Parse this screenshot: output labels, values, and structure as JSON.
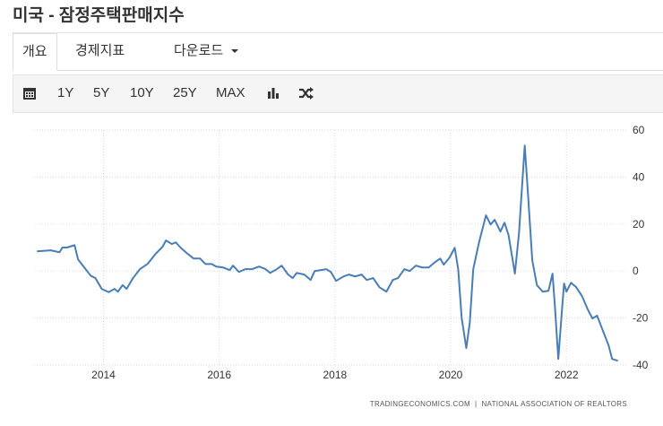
{
  "header": {
    "title": "미국 - 잠정주택판매지수"
  },
  "tabs": [
    "개요",
    "경제지표",
    "다운로드"
  ],
  "toolbar": {
    "ranges": [
      "1Y",
      "5Y",
      "10Y",
      "25Y",
      "MAX"
    ]
  },
  "chart_data": {
    "type": "line",
    "source": "TRADINGECONOMICS.COM  |  NATIONAL ASSOCIATION OF REALTORS",
    "xlim": [
      2012.8,
      2023.05
    ],
    "xticks": [
      2014,
      2016,
      2018,
      2020,
      2022
    ],
    "ylim": [
      -40,
      60
    ],
    "yticks": [
      -40,
      -20,
      0,
      20,
      40,
      60
    ],
    "grid": true,
    "x": [
      2012.85,
      2013.09,
      2013.24,
      2013.29,
      2013.37,
      2013.5,
      2013.56,
      2013.63,
      2013.78,
      2013.86,
      2013.97,
      2014.09,
      2014.19,
      2014.25,
      2014.33,
      2014.4,
      2014.51,
      2014.63,
      2014.76,
      2014.9,
      2015.02,
      2015.08,
      2015.18,
      2015.25,
      2015.33,
      2015.44,
      2015.56,
      2015.67,
      2015.76,
      2015.87,
      2015.95,
      2016.07,
      2016.18,
      2016.24,
      2016.34,
      2016.45,
      2016.57,
      2016.69,
      2016.8,
      2016.88,
      2016.97,
      2017.08,
      2017.19,
      2017.27,
      2017.34,
      2017.47,
      2017.58,
      2017.65,
      2017.76,
      2017.85,
      2017.93,
      2018.02,
      2018.15,
      2018.24,
      2018.35,
      2018.46,
      2018.55,
      2018.66,
      2018.77,
      2018.89,
      2019.0,
      2019.09,
      2019.2,
      2019.29,
      2019.4,
      2019.51,
      2019.62,
      2019.73,
      2019.82,
      2019.88,
      2019.98,
      2020.07,
      2020.13,
      2020.19,
      2020.27,
      2020.33,
      2020.39,
      2020.49,
      2020.61,
      2020.69,
      2020.76,
      2020.86,
      2020.93,
      2021.0,
      2021.11,
      2021.18,
      2021.28,
      2021.34,
      2021.41,
      2021.49,
      2021.59,
      2021.69,
      2021.76,
      2021.8,
      2021.86,
      2021.93,
      2021.96,
      2022.0,
      2022.08,
      2022.17,
      2022.27,
      2022.37,
      2022.45,
      2022.53,
      2022.64,
      2022.73,
      2022.79,
      2022.89
    ],
    "series": [
      {
        "color": "#4a7db5",
        "values": [
          8.4,
          8.8,
          8,
          10,
          10,
          11,
          5,
          2.7,
          -2,
          -3,
          -7.6,
          -9,
          -7.6,
          -8.8,
          -6,
          -7.6,
          -3,
          0.8,
          3,
          7.3,
          10.3,
          13,
          11.5,
          12.2,
          10,
          7.6,
          5.3,
          5.3,
          3,
          3,
          1.9,
          1.5,
          0.4,
          2.3,
          -0.4,
          0.8,
          0.8,
          1.9,
          0.8,
          -0.8,
          0.4,
          2.3,
          -1.5,
          -3,
          -0.8,
          -1.5,
          -3.8,
          0,
          0.4,
          0.8,
          -0.4,
          -4.2,
          -2.3,
          -1.5,
          -2.3,
          -1.5,
          -3.8,
          -3,
          -6.9,
          -8.8,
          -3.8,
          -3,
          0.8,
          0,
          2.3,
          1.5,
          1.5,
          3.8,
          5.3,
          2.7,
          5.7,
          9.9,
          0.8,
          -20,
          -32.8,
          -22,
          0.8,
          12.2,
          23.7,
          19.8,
          21.8,
          16.8,
          20.6,
          15.3,
          -1.1,
          16,
          53.4,
          31.3,
          4.6,
          -6,
          -8.8,
          -8.4,
          -1.1,
          -14.5,
          -37.4,
          -14.5,
          -5.3,
          -8.8,
          -5,
          -6.9,
          -10.7,
          -16.4,
          -20.2,
          -19,
          -26,
          -31.7,
          -37.4,
          -38.2
        ]
      }
    ]
  }
}
